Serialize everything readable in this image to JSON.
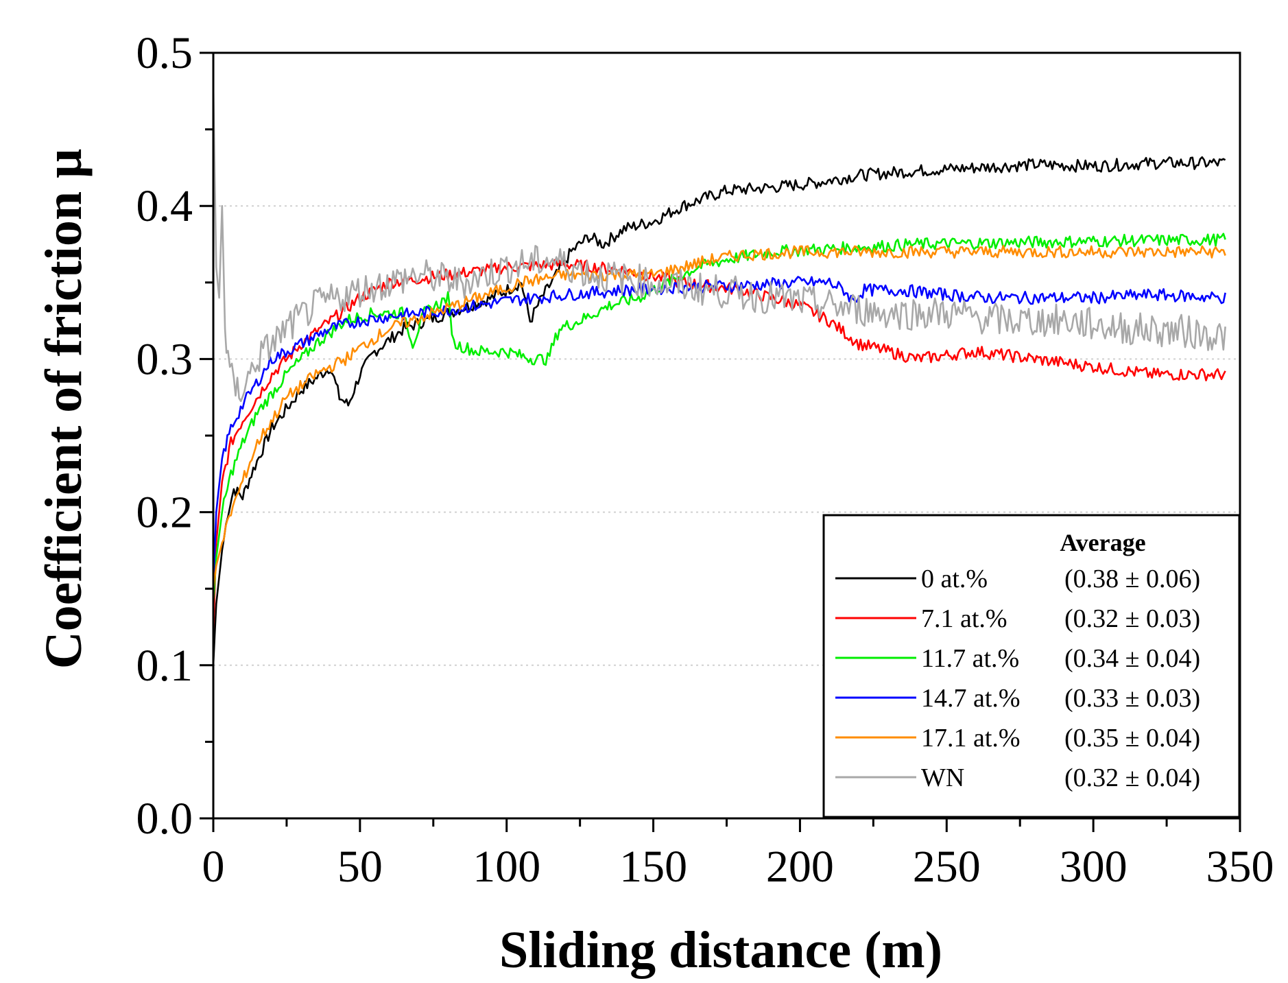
{
  "chart_data": {
    "type": "line",
    "xlabel": "Sliding distance (m)",
    "ylabel": "Coefficient of friction μ",
    "xlim": [
      0,
      350
    ],
    "ylim": [
      0,
      0.5
    ],
    "xticks": [
      "0",
      "50",
      "100",
      "150",
      "200",
      "250",
      "300",
      "350"
    ],
    "yticks": [
      "0.0",
      "0.1",
      "0.2",
      "0.3",
      "0.4",
      "0.5"
    ],
    "grid": "horizontal dotted",
    "legend_title": "Average",
    "legend_position": "lower-right",
    "series": [
      {
        "name": "0 at.%",
        "average": "(0.38 ± 0.06)",
        "color": "#000000",
        "points": [
          [
            0,
            0.1
          ],
          [
            1,
            0.14
          ],
          [
            3,
            0.175
          ],
          [
            5,
            0.2
          ],
          [
            7,
            0.215
          ],
          [
            10,
            0.21
          ],
          [
            13,
            0.225
          ],
          [
            20,
            0.255
          ],
          [
            30,
            0.28
          ],
          [
            40,
            0.295
          ],
          [
            43,
            0.275
          ],
          [
            46,
            0.27
          ],
          [
            50,
            0.29
          ],
          [
            55,
            0.305
          ],
          [
            65,
            0.32
          ],
          [
            80,
            0.33
          ],
          [
            95,
            0.34
          ],
          [
            105,
            0.35
          ],
          [
            108,
            0.325
          ],
          [
            112,
            0.34
          ],
          [
            117,
            0.355
          ],
          [
            122,
            0.37
          ],
          [
            128,
            0.38
          ],
          [
            133,
            0.375
          ],
          [
            140,
            0.385
          ],
          [
            150,
            0.39
          ],
          [
            160,
            0.4
          ],
          [
            175,
            0.41
          ],
          [
            190,
            0.412
          ],
          [
            205,
            0.415
          ],
          [
            220,
            0.42
          ],
          [
            240,
            0.423
          ],
          [
            260,
            0.425
          ],
          [
            280,
            0.427
          ],
          [
            300,
            0.426
          ],
          [
            320,
            0.428
          ],
          [
            345,
            0.428
          ]
        ]
      },
      {
        "name": "7.1 at.%",
        "average": "(0.32 ± 0.03)",
        "color": "#ff0000",
        "points": [
          [
            0,
            0.12
          ],
          [
            1,
            0.18
          ],
          [
            3,
            0.22
          ],
          [
            6,
            0.245
          ],
          [
            10,
            0.26
          ],
          [
            20,
            0.29
          ],
          [
            30,
            0.31
          ],
          [
            40,
            0.325
          ],
          [
            50,
            0.34
          ],
          [
            60,
            0.35
          ],
          [
            80,
            0.355
          ],
          [
            100,
            0.36
          ],
          [
            120,
            0.362
          ],
          [
            140,
            0.358
          ],
          [
            160,
            0.35
          ],
          [
            180,
            0.345
          ],
          [
            200,
            0.335
          ],
          [
            210,
            0.325
          ],
          [
            220,
            0.31
          ],
          [
            230,
            0.305
          ],
          [
            240,
            0.3
          ],
          [
            260,
            0.305
          ],
          [
            280,
            0.3
          ],
          [
            300,
            0.295
          ],
          [
            320,
            0.29
          ],
          [
            345,
            0.29
          ]
        ]
      },
      {
        "name": "11.7 at.%",
        "average": "(0.34 ± 0.04)",
        "color": "#00ee00",
        "points": [
          [
            0,
            0.14
          ],
          [
            1,
            0.17
          ],
          [
            3,
            0.2
          ],
          [
            6,
            0.225
          ],
          [
            10,
            0.245
          ],
          [
            15,
            0.265
          ],
          [
            25,
            0.29
          ],
          [
            35,
            0.31
          ],
          [
            45,
            0.325
          ],
          [
            55,
            0.33
          ],
          [
            65,
            0.33
          ],
          [
            68,
            0.31
          ],
          [
            72,
            0.33
          ],
          [
            80,
            0.34
          ],
          [
            82,
            0.31
          ],
          [
            90,
            0.305
          ],
          [
            100,
            0.305
          ],
          [
            105,
            0.302
          ],
          [
            110,
            0.3
          ],
          [
            114,
            0.3
          ],
          [
            118,
            0.32
          ],
          [
            125,
            0.325
          ],
          [
            135,
            0.335
          ],
          [
            145,
            0.34
          ],
          [
            155,
            0.35
          ],
          [
            165,
            0.36
          ],
          [
            175,
            0.365
          ],
          [
            190,
            0.37
          ],
          [
            210,
            0.372
          ],
          [
            240,
            0.375
          ],
          [
            270,
            0.376
          ],
          [
            300,
            0.377
          ],
          [
            345,
            0.378
          ]
        ]
      },
      {
        "name": "14.7 at.%",
        "average": "(0.33 ± 0.03)",
        "color": "#0000ff",
        "points": [
          [
            0,
            0.15
          ],
          [
            1,
            0.2
          ],
          [
            3,
            0.235
          ],
          [
            6,
            0.255
          ],
          [
            10,
            0.27
          ],
          [
            20,
            0.3
          ],
          [
            30,
            0.31
          ],
          [
            40,
            0.32
          ],
          [
            50,
            0.325
          ],
          [
            60,
            0.328
          ],
          [
            80,
            0.332
          ],
          [
            100,
            0.338
          ],
          [
            120,
            0.342
          ],
          [
            140,
            0.345
          ],
          [
            160,
            0.347
          ],
          [
            180,
            0.348
          ],
          [
            200,
            0.35
          ],
          [
            210,
            0.35
          ],
          [
            215,
            0.345
          ],
          [
            218,
            0.338
          ],
          [
            222,
            0.345
          ],
          [
            235,
            0.345
          ],
          [
            250,
            0.342
          ],
          [
            265,
            0.34
          ],
          [
            280,
            0.34
          ],
          [
            300,
            0.34
          ],
          [
            320,
            0.342
          ],
          [
            345,
            0.34
          ]
        ]
      },
      {
        "name": "17.1 at.%",
        "average": "(0.35 ± 0.04)",
        "color": "#ff8c00",
        "points": [
          [
            0,
            0.15
          ],
          [
            1,
            0.165
          ],
          [
            3,
            0.18
          ],
          [
            6,
            0.2
          ],
          [
            10,
            0.22
          ],
          [
            15,
            0.245
          ],
          [
            25,
            0.275
          ],
          [
            35,
            0.29
          ],
          [
            45,
            0.3
          ],
          [
            52,
            0.31
          ],
          [
            60,
            0.32
          ],
          [
            75,
            0.33
          ],
          [
            90,
            0.34
          ],
          [
            105,
            0.35
          ],
          [
            120,
            0.355
          ],
          [
            135,
            0.355
          ],
          [
            150,
            0.355
          ],
          [
            160,
            0.36
          ],
          [
            170,
            0.365
          ],
          [
            180,
            0.368
          ],
          [
            200,
            0.37
          ],
          [
            220,
            0.37
          ],
          [
            250,
            0.37
          ],
          [
            280,
            0.37
          ],
          [
            300,
            0.37
          ],
          [
            320,
            0.37
          ],
          [
            345,
            0.37
          ]
        ]
      },
      {
        "name": "WN",
        "average": "(0.32 ± 0.04)",
        "color": "#a8a8a8",
        "points": [
          [
            0,
            0.48
          ],
          [
            1,
            0.36
          ],
          [
            2,
            0.34
          ],
          [
            3,
            0.4
          ],
          [
            4,
            0.32
          ],
          [
            5,
            0.3
          ],
          [
            7,
            0.28
          ],
          [
            10,
            0.28
          ],
          [
            15,
            0.3
          ],
          [
            25,
            0.32
          ],
          [
            35,
            0.335
          ],
          [
            50,
            0.345
          ],
          [
            70,
            0.355
          ],
          [
            85,
            0.35
          ],
          [
            100,
            0.36
          ],
          [
            115,
            0.365
          ],
          [
            130,
            0.355
          ],
          [
            150,
            0.35
          ],
          [
            170,
            0.345
          ],
          [
            190,
            0.34
          ],
          [
            210,
            0.335
          ],
          [
            230,
            0.33
          ],
          [
            250,
            0.33
          ],
          [
            270,
            0.325
          ],
          [
            290,
            0.325
          ],
          [
            310,
            0.32
          ],
          [
            330,
            0.318
          ],
          [
            345,
            0.315
          ]
        ]
      }
    ]
  }
}
